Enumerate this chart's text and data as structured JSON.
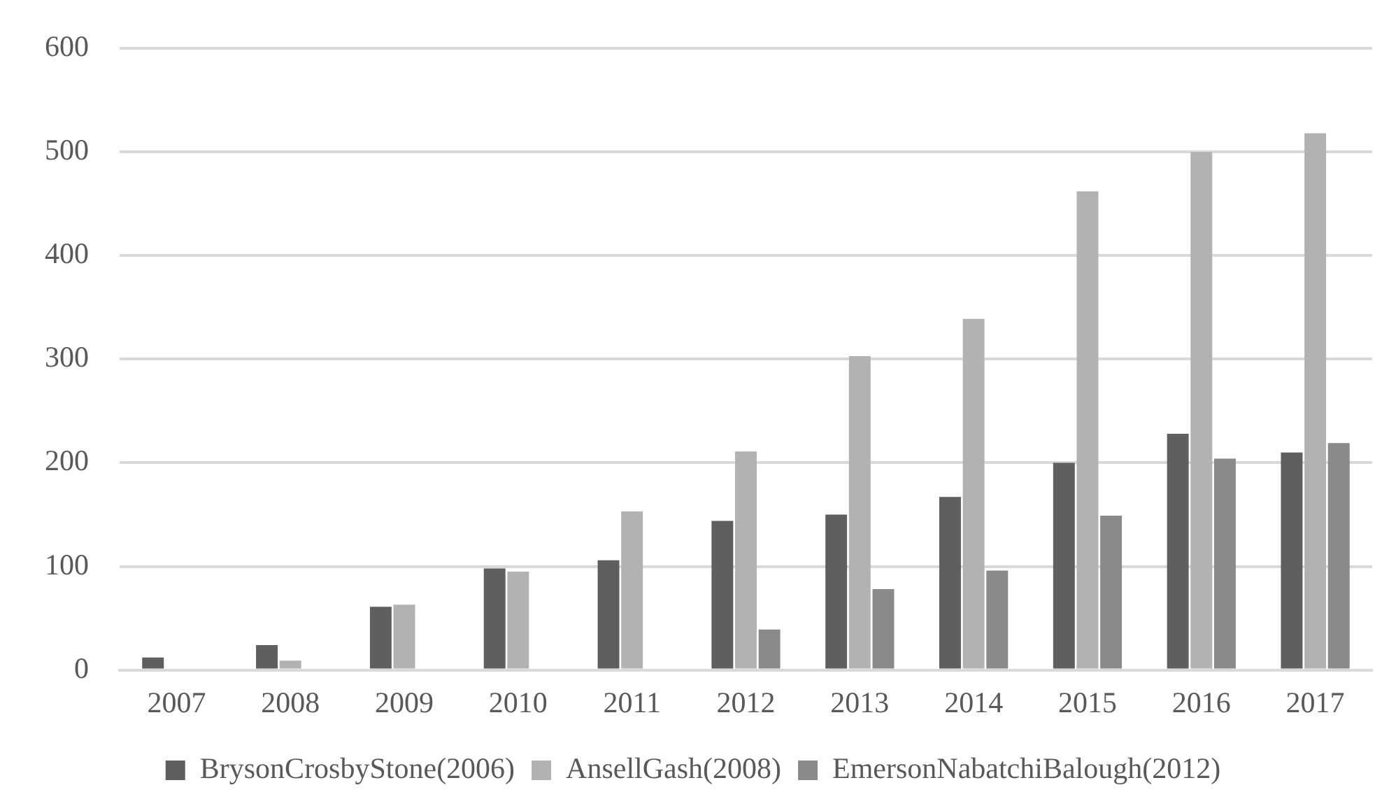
{
  "chart_data": {
    "type": "bar",
    "categories": [
      "2007",
      "2008",
      "2009",
      "2010",
      "2011",
      "2012",
      "2013",
      "2014",
      "2015",
      "2016",
      "2017"
    ],
    "series": [
      {
        "name": "BrysonCrosbyStone(2006)",
        "color": "#5f5f5f",
        "values": [
          12,
          24,
          61,
          98,
          106,
          144,
          150,
          167,
          200,
          228,
          210
        ]
      },
      {
        "name": "AnsellGash(2008)",
        "color": "#b2b2b2",
        "values": [
          0,
          9,
          63,
          95,
          153,
          211,
          303,
          339,
          462,
          500,
          518
        ]
      },
      {
        "name": "EmersonNabatchiBalough(2012)",
        "color": "#8a8a8a",
        "values": [
          0,
          0,
          0,
          0,
          0,
          39,
          78,
          96,
          149,
          204,
          219
        ]
      }
    ],
    "ylim": [
      0,
      600
    ],
    "yticks": [
      0,
      100,
      200,
      300,
      400,
      500,
      600
    ],
    "grid": "y",
    "legend": "bottom"
  }
}
